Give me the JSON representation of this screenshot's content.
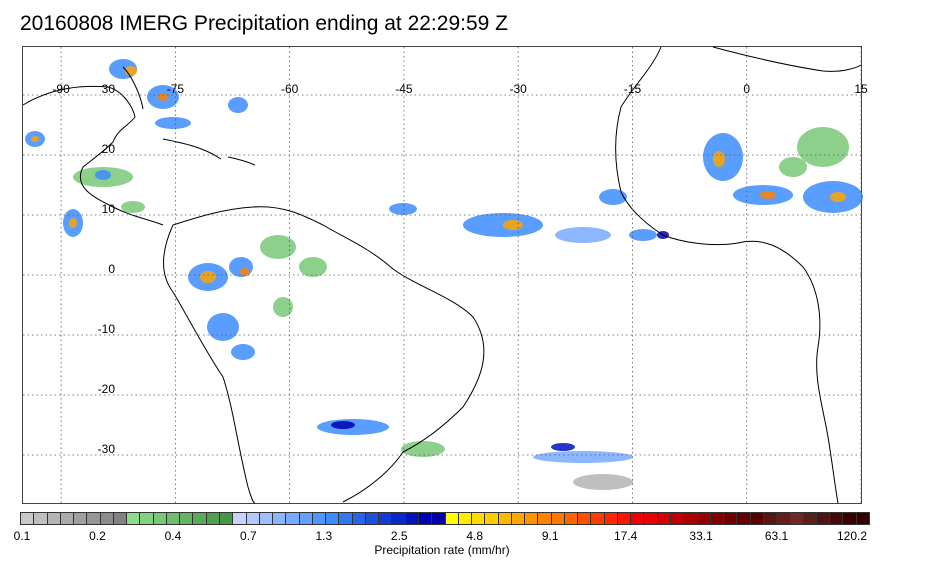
{
  "title": "20160808 IMERG Precipitation ending at 22:29:59 Z",
  "map": {
    "lon_range": [
      -95,
      15
    ],
    "lat_range": [
      -38,
      38
    ],
    "lon_labels": [
      "-90",
      "-75",
      "-60",
      "-45",
      "-30",
      "-15",
      "0",
      "15"
    ],
    "lat_labels": [
      "30",
      "20",
      "10",
      "0",
      "-10",
      "-20",
      "-30"
    ],
    "gridline_style": "dotted",
    "coastline_color": "#000000"
  },
  "colorbar": {
    "title": "Precipitation rate (mm/hr)",
    "labels": [
      "0.1",
      "0.2",
      "0.4",
      "0.7",
      "1.3",
      "2.5",
      "4.8",
      "9.1",
      "17.4",
      "33.1",
      "63.1",
      "120.2"
    ],
    "colors": [
      "#c8c8c8",
      "#bebebe",
      "#b4b4b4",
      "#aaaaaa",
      "#a0a0a0",
      "#969696",
      "#8c8c8c",
      "#828282",
      "#8cdc8c",
      "#82d282",
      "#78c878",
      "#6ebe6e",
      "#64b464",
      "#5aaa5a",
      "#50a050",
      "#469646",
      "#c8d2ff",
      "#b4c8ff",
      "#a0beff",
      "#8cb4ff",
      "#78aaff",
      "#64a0ff",
      "#5096ff",
      "#3c8cff",
      "#3278f0",
      "#2864e6",
      "#1e50dc",
      "#143cd2",
      "#0a28c8",
      "#0014be",
      "#0000b4",
      "#0000aa",
      "#ffff00",
      "#ffee00",
      "#ffdc00",
      "#ffca00",
      "#ffb800",
      "#ffa600",
      "#ff9400",
      "#ff8200",
      "#ff7800",
      "#ff6400",
      "#ff5000",
      "#ff3c00",
      "#ff2800",
      "#ff1400",
      "#f00000",
      "#e60000",
      "#d20000",
      "#be0000",
      "#aa0000",
      "#960000",
      "#820000",
      "#6e0000",
      "#640000",
      "#5a0000",
      "#5a1414",
      "#641e1e",
      "#6e2828",
      "#5a1e1e",
      "#501414",
      "#460a0a",
      "#3c0000",
      "#320000"
    ]
  }
}
